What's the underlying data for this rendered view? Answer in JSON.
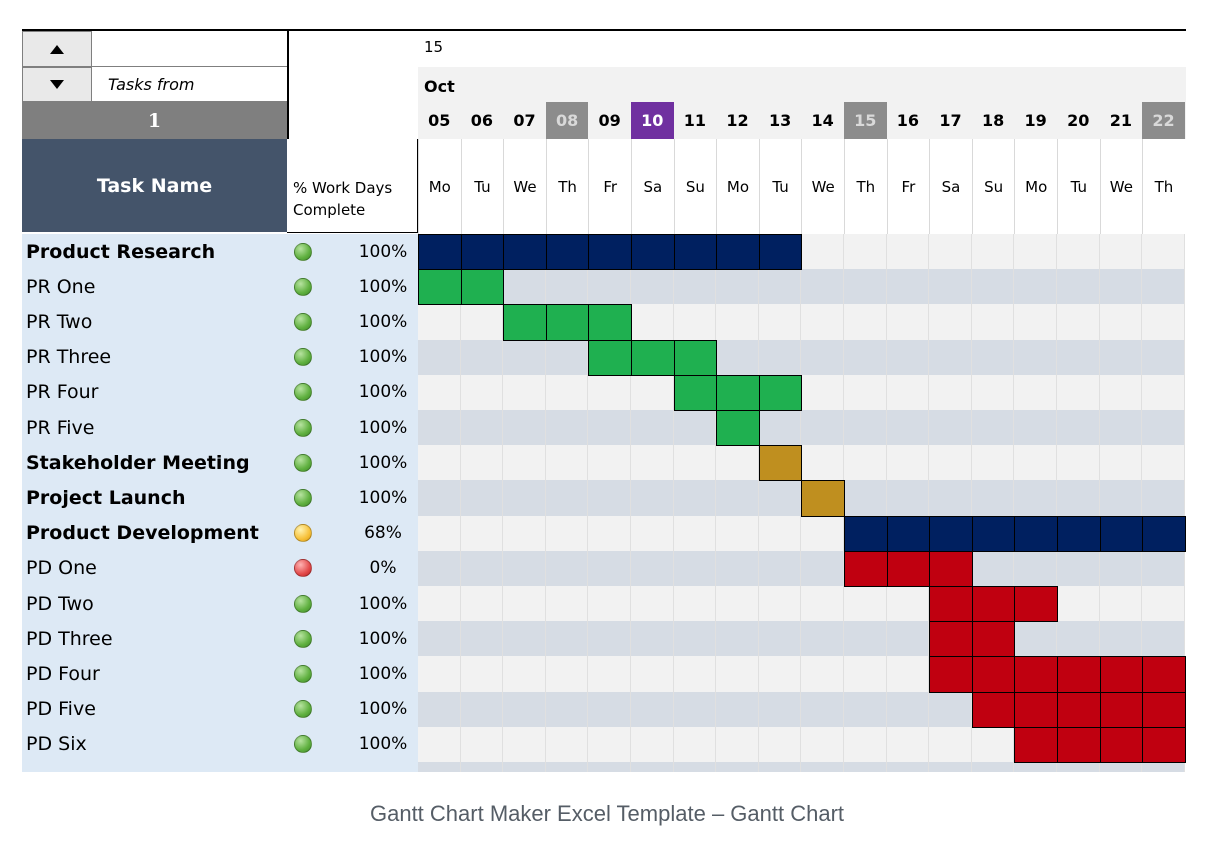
{
  "header": {
    "scroll_up_icon": "triangle-up",
    "scroll_down_icon": "triangle-down",
    "tasks_from_label": "Tasks from",
    "start_task_number": "1",
    "task_name_header": "Task Name",
    "pct_header_line1": "% Work Days",
    "pct_header_line2": "Complete",
    "year_label": "15",
    "month_label": "Oct"
  },
  "dates": [
    "05",
    "06",
    "07",
    "08",
    "09",
    "10",
    "11",
    "12",
    "13",
    "14",
    "15",
    "16",
    "17",
    "18",
    "19",
    "20",
    "21",
    "22"
  ],
  "weekdays": [
    "Mo",
    "Tu",
    "We",
    "Th",
    "Fr",
    "Sa",
    "Su",
    "Mo",
    "Tu",
    "We",
    "Th",
    "Fr",
    "Sa",
    "Su",
    "Mo",
    "Tu",
    "We",
    "Th"
  ],
  "date_highlights": {
    "08": "gray",
    "10": "purple",
    "15": "gray",
    "22": "gray"
  },
  "tasks": [
    {
      "name": "Product Research",
      "bold": true,
      "status": "green",
      "percent": "100%",
      "start": 0,
      "end": 8,
      "color": "#002060"
    },
    {
      "name": "PR One",
      "bold": false,
      "status": "green",
      "percent": "100%",
      "start": 0,
      "end": 1,
      "color": "#1fb050"
    },
    {
      "name": "PR Two",
      "bold": false,
      "status": "green",
      "percent": "100%",
      "start": 2,
      "end": 4,
      "color": "#1fb050"
    },
    {
      "name": "PR Three",
      "bold": false,
      "status": "green",
      "percent": "100%",
      "start": 4,
      "end": 6,
      "color": "#1fb050"
    },
    {
      "name": "PR Four",
      "bold": false,
      "status": "green",
      "percent": "100%",
      "start": 6,
      "end": 8,
      "color": "#1fb050"
    },
    {
      "name": "PR Five",
      "bold": false,
      "status": "green",
      "percent": "100%",
      "start": 7,
      "end": 7,
      "color": "#1fb050"
    },
    {
      "name": "Stakeholder Meeting",
      "bold": true,
      "status": "green",
      "percent": "100%",
      "start": 8,
      "end": 8,
      "color": "#bf8f1f"
    },
    {
      "name": "Project Launch",
      "bold": true,
      "status": "green",
      "percent": "100%",
      "start": 9,
      "end": 9,
      "color": "#bf8f1f"
    },
    {
      "name": "Product Development",
      "bold": true,
      "status": "yellow",
      "percent": "68%",
      "start": 10,
      "end": 17,
      "color": "#002060"
    },
    {
      "name": "PD One",
      "bold": false,
      "status": "red",
      "percent": "0%",
      "start": 10,
      "end": 12,
      "color": "#c00010"
    },
    {
      "name": "PD Two",
      "bold": false,
      "status": "green",
      "percent": "100%",
      "start": 12,
      "end": 14,
      "color": "#c00010"
    },
    {
      "name": "PD Three",
      "bold": false,
      "status": "green",
      "percent": "100%",
      "start": 12,
      "end": 13,
      "color": "#c00010"
    },
    {
      "name": "PD Four",
      "bold": false,
      "status": "green",
      "percent": "100%",
      "start": 12,
      "end": 17,
      "color": "#c00010"
    },
    {
      "name": "PD Five",
      "bold": false,
      "status": "green",
      "percent": "100%",
      "start": 13,
      "end": 17,
      "color": "#c00010"
    },
    {
      "name": "PD Six",
      "bold": false,
      "status": "green",
      "percent": "100%",
      "start": 14,
      "end": 17,
      "color": "#c00010"
    }
  ],
  "colors": {
    "task_header_bg": "#44546a",
    "name_column_bg": "#dde9f5",
    "row_light": "#f2f2f2",
    "row_dark": "#d6dce4",
    "highlight_gray": "#8c8c8c",
    "highlight_purple": "#7030a0"
  },
  "caption": "Gantt Chart Maker Excel Template – Gantt Chart"
}
